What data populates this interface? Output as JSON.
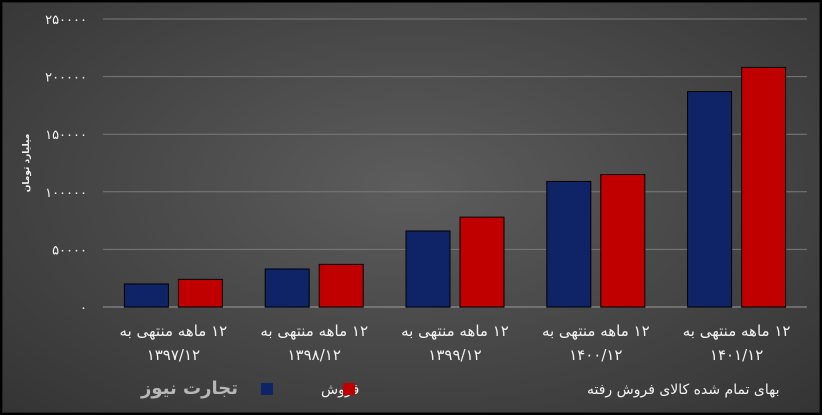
{
  "chart_data": {
    "type": "bar",
    "ylabel": "میلیارد تومان",
    "ylim": [
      0,
      250000
    ],
    "yticks": [
      "۰",
      "۵۰۰۰۰",
      "۱۰۰۰۰۰",
      "۱۵۰۰۰۰",
      "۲۰۰۰۰۰",
      "۲۵۰۰۰۰"
    ],
    "ytick_values": [
      0,
      50000,
      100000,
      150000,
      200000,
      250000
    ],
    "categories": [
      [
        "۱۲ ماهه منتهی به",
        "۱۳۹۷/۱۲"
      ],
      [
        "۱۲ ماهه منتهی به",
        "۱۳۹۸/۱۲"
      ],
      [
        "۱۲ ماهه منتهی به",
        "۱۳۹۹/۱۲"
      ],
      [
        "۱۲ ماهه منتهی به",
        "۱۴۰۰/۱۲"
      ],
      [
        "۱۲ ماهه منتهی به",
        "۱۴۰۱/۱۲"
      ]
    ],
    "series": [
      {
        "name": "فروش",
        "color": "#0f2367",
        "values": [
          20000,
          33000,
          66000,
          109000,
          187000
        ]
      },
      {
        "name": "بهای تمام شده کالای فروش رفته",
        "color": "#c00000",
        "values": [
          24000,
          37000,
          78000,
          115000,
          208000
        ]
      }
    ],
    "grid": true,
    "legend": "bottom"
  },
  "watermark": "تجارت نیوز"
}
